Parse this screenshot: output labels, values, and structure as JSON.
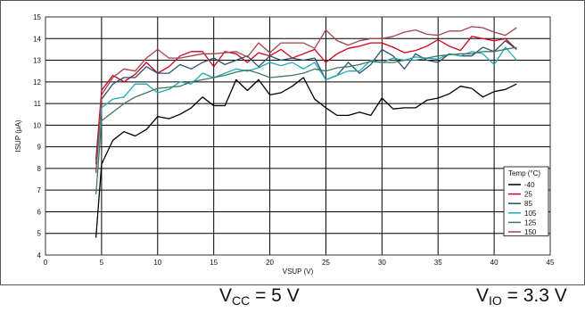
{
  "chart_data": {
    "type": "line",
    "xlabel": "VSUP (V)",
    "ylabel": "ISUP (μA)",
    "xlim": [
      0,
      45
    ],
    "ylim": [
      4,
      15
    ],
    "xticks": [
      "0",
      "5",
      "10",
      "15",
      "20",
      "25",
      "30",
      "35",
      "40",
      "45"
    ],
    "yticks": [
      "4",
      "5",
      "6",
      "7",
      "8",
      "9",
      "10",
      "11",
      "12",
      "13",
      "14",
      "15"
    ],
    "grid": true,
    "legend": {
      "title": "Temp (°C)",
      "position": "lower-right"
    },
    "series": [
      {
        "name": "-40",
        "color": "#000000",
        "points": [
          [
            4.5,
            4.8
          ],
          [
            5,
            8.2
          ],
          [
            6,
            9.3
          ],
          [
            7,
            9.7
          ],
          [
            8,
            9.5
          ],
          [
            9,
            9.8
          ],
          [
            10,
            10.4
          ],
          [
            11,
            10.3
          ],
          [
            12,
            10.5
          ],
          [
            13,
            10.8
          ],
          [
            14,
            11.3
          ],
          [
            15,
            10.9
          ],
          [
            16,
            10.9
          ],
          [
            17,
            12.1
          ],
          [
            18,
            11.6
          ],
          [
            19,
            12.1
          ],
          [
            20,
            11.4
          ],
          [
            21,
            11.5
          ],
          [
            22,
            11.8
          ],
          [
            23,
            12.2
          ],
          [
            24,
            11.2
          ],
          [
            25,
            10.8
          ],
          [
            26,
            10.45
          ],
          [
            27,
            10.45
          ],
          [
            28,
            10.6
          ],
          [
            29,
            10.45
          ],
          [
            30,
            11.25
          ],
          [
            31,
            10.75
          ],
          [
            32,
            10.8
          ],
          [
            33,
            10.8
          ],
          [
            34,
            11.15
          ],
          [
            35,
            11.25
          ],
          [
            36,
            11.45
          ],
          [
            37,
            11.8
          ],
          [
            38,
            11.7
          ],
          [
            39,
            11.3
          ],
          [
            40,
            11.55
          ],
          [
            41,
            11.65
          ],
          [
            42,
            11.9
          ]
        ]
      },
      {
        "name": "25",
        "color": "#d0021b",
        "points": [
          [
            4.5,
            8.4
          ],
          [
            5,
            11.6
          ],
          [
            6,
            12.3
          ],
          [
            7,
            12.0
          ],
          [
            8,
            12.35
          ],
          [
            9,
            12.9
          ],
          [
            10,
            12.4
          ],
          [
            11,
            12.7
          ],
          [
            12,
            13.2
          ],
          [
            13,
            13.4
          ],
          [
            14,
            13.4
          ],
          [
            15,
            12.7
          ],
          [
            16,
            13.4
          ],
          [
            17,
            13.3
          ],
          [
            18,
            12.9
          ],
          [
            19,
            13.35
          ],
          [
            20,
            13.2
          ],
          [
            21,
            13.5
          ],
          [
            22,
            13.1
          ],
          [
            23,
            13.3
          ],
          [
            24,
            13.5
          ],
          [
            25,
            12.9
          ],
          [
            26,
            13.3
          ],
          [
            27,
            13.55
          ],
          [
            28,
            13.65
          ],
          [
            29,
            13.8
          ],
          [
            30,
            13.8
          ],
          [
            31,
            13.6
          ],
          [
            32,
            13.35
          ],
          [
            33,
            13.45
          ],
          [
            34,
            13.65
          ],
          [
            35,
            13.95
          ],
          [
            36,
            13.65
          ],
          [
            37,
            13.45
          ],
          [
            38,
            14.1
          ],
          [
            39,
            14.0
          ],
          [
            40,
            13.9
          ],
          [
            41,
            14.0
          ],
          [
            42,
            13.5
          ]
        ]
      },
      {
        "name": "85",
        "color": "#2c4f6c",
        "points": [
          [
            4.5,
            8.2
          ],
          [
            5,
            11.2
          ],
          [
            6,
            11.9
          ],
          [
            7,
            12.2
          ],
          [
            8,
            12.2
          ],
          [
            9,
            12.7
          ],
          [
            10,
            12.4
          ],
          [
            11,
            12.4
          ],
          [
            12,
            12.8
          ],
          [
            13,
            12.6
          ],
          [
            14,
            12.9
          ],
          [
            15,
            13.1
          ],
          [
            16,
            12.8
          ],
          [
            17,
            13.0
          ],
          [
            18,
            13.2
          ],
          [
            19,
            12.7
          ],
          [
            20,
            13.2
          ],
          [
            21,
            13.0
          ],
          [
            22,
            13.1
          ],
          [
            23,
            13.0
          ],
          [
            24,
            13.1
          ],
          [
            25,
            12.1
          ],
          [
            26,
            12.3
          ],
          [
            27,
            12.9
          ],
          [
            28,
            12.4
          ],
          [
            29,
            12.8
          ],
          [
            30,
            13.5
          ],
          [
            31,
            13.2
          ],
          [
            32,
            12.6
          ],
          [
            33,
            13.3
          ],
          [
            34,
            13.0
          ],
          [
            35,
            12.9
          ],
          [
            36,
            13.3
          ],
          [
            37,
            13.2
          ],
          [
            38,
            13.2
          ],
          [
            39,
            13.6
          ],
          [
            40,
            13.4
          ],
          [
            41,
            13.9
          ],
          [
            42,
            13.5
          ]
        ]
      },
      {
        "name": "105",
        "color": "#1fa9b8",
        "points": [
          [
            4.5,
            7.8
          ],
          [
            5,
            10.8
          ],
          [
            6,
            11.2
          ],
          [
            7,
            11.3
          ],
          [
            8,
            11.9
          ],
          [
            9,
            11.9
          ],
          [
            10,
            11.5
          ],
          [
            11,
            11.65
          ],
          [
            12,
            12.0
          ],
          [
            13,
            11.9
          ],
          [
            14,
            12.4
          ],
          [
            15,
            12.2
          ],
          [
            16,
            12.4
          ],
          [
            17,
            12.6
          ],
          [
            18,
            12.5
          ],
          [
            19,
            12.65
          ],
          [
            20,
            12.9
          ],
          [
            21,
            12.75
          ],
          [
            22,
            12.9
          ],
          [
            23,
            12.6
          ],
          [
            24,
            12.9
          ],
          [
            25,
            12.1
          ],
          [
            26,
            12.3
          ],
          [
            27,
            12.5
          ],
          [
            28,
            12.5
          ],
          [
            29,
            13.0
          ],
          [
            30,
            12.9
          ],
          [
            31,
            13.1
          ],
          [
            32,
            13.0
          ],
          [
            33,
            13.15
          ],
          [
            34,
            13.1
          ],
          [
            35,
            13.05
          ],
          [
            36,
            13.3
          ],
          [
            37,
            13.2
          ],
          [
            38,
            13.4
          ],
          [
            39,
            13.3
          ],
          [
            40,
            12.8
          ],
          [
            41,
            13.6
          ],
          [
            42,
            13.0
          ]
        ]
      },
      {
        "name": "125",
        "color": "#3d7a5a",
        "points": [
          [
            4.5,
            6.8
          ],
          [
            5,
            10.2
          ],
          [
            6,
            10.6
          ],
          [
            7,
            11.0
          ],
          [
            8,
            11.3
          ],
          [
            9,
            11.5
          ],
          [
            10,
            11.7
          ],
          [
            11,
            11.75
          ],
          [
            12,
            11.8
          ],
          [
            13,
            12.0
          ],
          [
            14,
            12.1
          ],
          [
            15,
            12.2
          ],
          [
            16,
            12.3
          ],
          [
            17,
            12.45
          ],
          [
            18,
            12.55
          ],
          [
            19,
            12.4
          ],
          [
            20,
            12.2
          ],
          [
            21,
            12.25
          ],
          [
            22,
            12.3
          ],
          [
            23,
            12.4
          ],
          [
            24,
            12.6
          ],
          [
            25,
            12.5
          ],
          [
            26,
            12.65
          ],
          [
            27,
            12.7
          ],
          [
            28,
            12.8
          ],
          [
            29,
            12.95
          ],
          [
            30,
            12.9
          ],
          [
            31,
            12.9
          ],
          [
            32,
            13.0
          ],
          [
            33,
            13.0
          ],
          [
            34,
            13.1
          ],
          [
            35,
            13.2
          ],
          [
            36,
            13.25
          ],
          [
            37,
            13.3
          ],
          [
            38,
            13.3
          ],
          [
            39,
            13.4
          ],
          [
            40,
            13.4
          ],
          [
            41,
            13.5
          ],
          [
            42,
            13.6
          ]
        ]
      },
      {
        "name": "150",
        "color": "#a4424e",
        "points": [
          [
            4.5,
            7.8
          ],
          [
            5,
            11.4
          ],
          [
            6,
            12.2
          ],
          [
            7,
            12.6
          ],
          [
            8,
            12.5
          ],
          [
            9,
            13.1
          ],
          [
            10,
            13.5
          ],
          [
            11,
            13.1
          ],
          [
            12,
            13.1
          ],
          [
            13,
            13.2
          ],
          [
            14,
            13.3
          ],
          [
            15,
            13.3
          ],
          [
            16,
            13.35
          ],
          [
            17,
            13.4
          ],
          [
            18,
            13.15
          ],
          [
            19,
            13.8
          ],
          [
            20,
            13.35
          ],
          [
            21,
            13.8
          ],
          [
            22,
            13.8
          ],
          [
            23,
            13.8
          ],
          [
            24,
            13.55
          ],
          [
            25,
            14.4
          ],
          [
            26,
            13.9
          ],
          [
            27,
            13.7
          ],
          [
            28,
            13.9
          ],
          [
            29,
            14.0
          ],
          [
            30,
            14.0
          ],
          [
            31,
            14.1
          ],
          [
            32,
            14.3
          ],
          [
            33,
            14.4
          ],
          [
            34,
            14.2
          ],
          [
            35,
            14.15
          ],
          [
            36,
            14.35
          ],
          [
            37,
            14.35
          ],
          [
            38,
            14.55
          ],
          [
            39,
            14.5
          ],
          [
            40,
            14.3
          ],
          [
            41,
            14.15
          ],
          [
            42,
            14.5
          ]
        ]
      }
    ]
  },
  "conditions": {
    "vcc_main": "V",
    "vcc_sub": "CC",
    "vcc_value": " = 5 V",
    "vio_main": "V",
    "vio_sub": "IO",
    "vio_value": " = 3.3 V"
  }
}
